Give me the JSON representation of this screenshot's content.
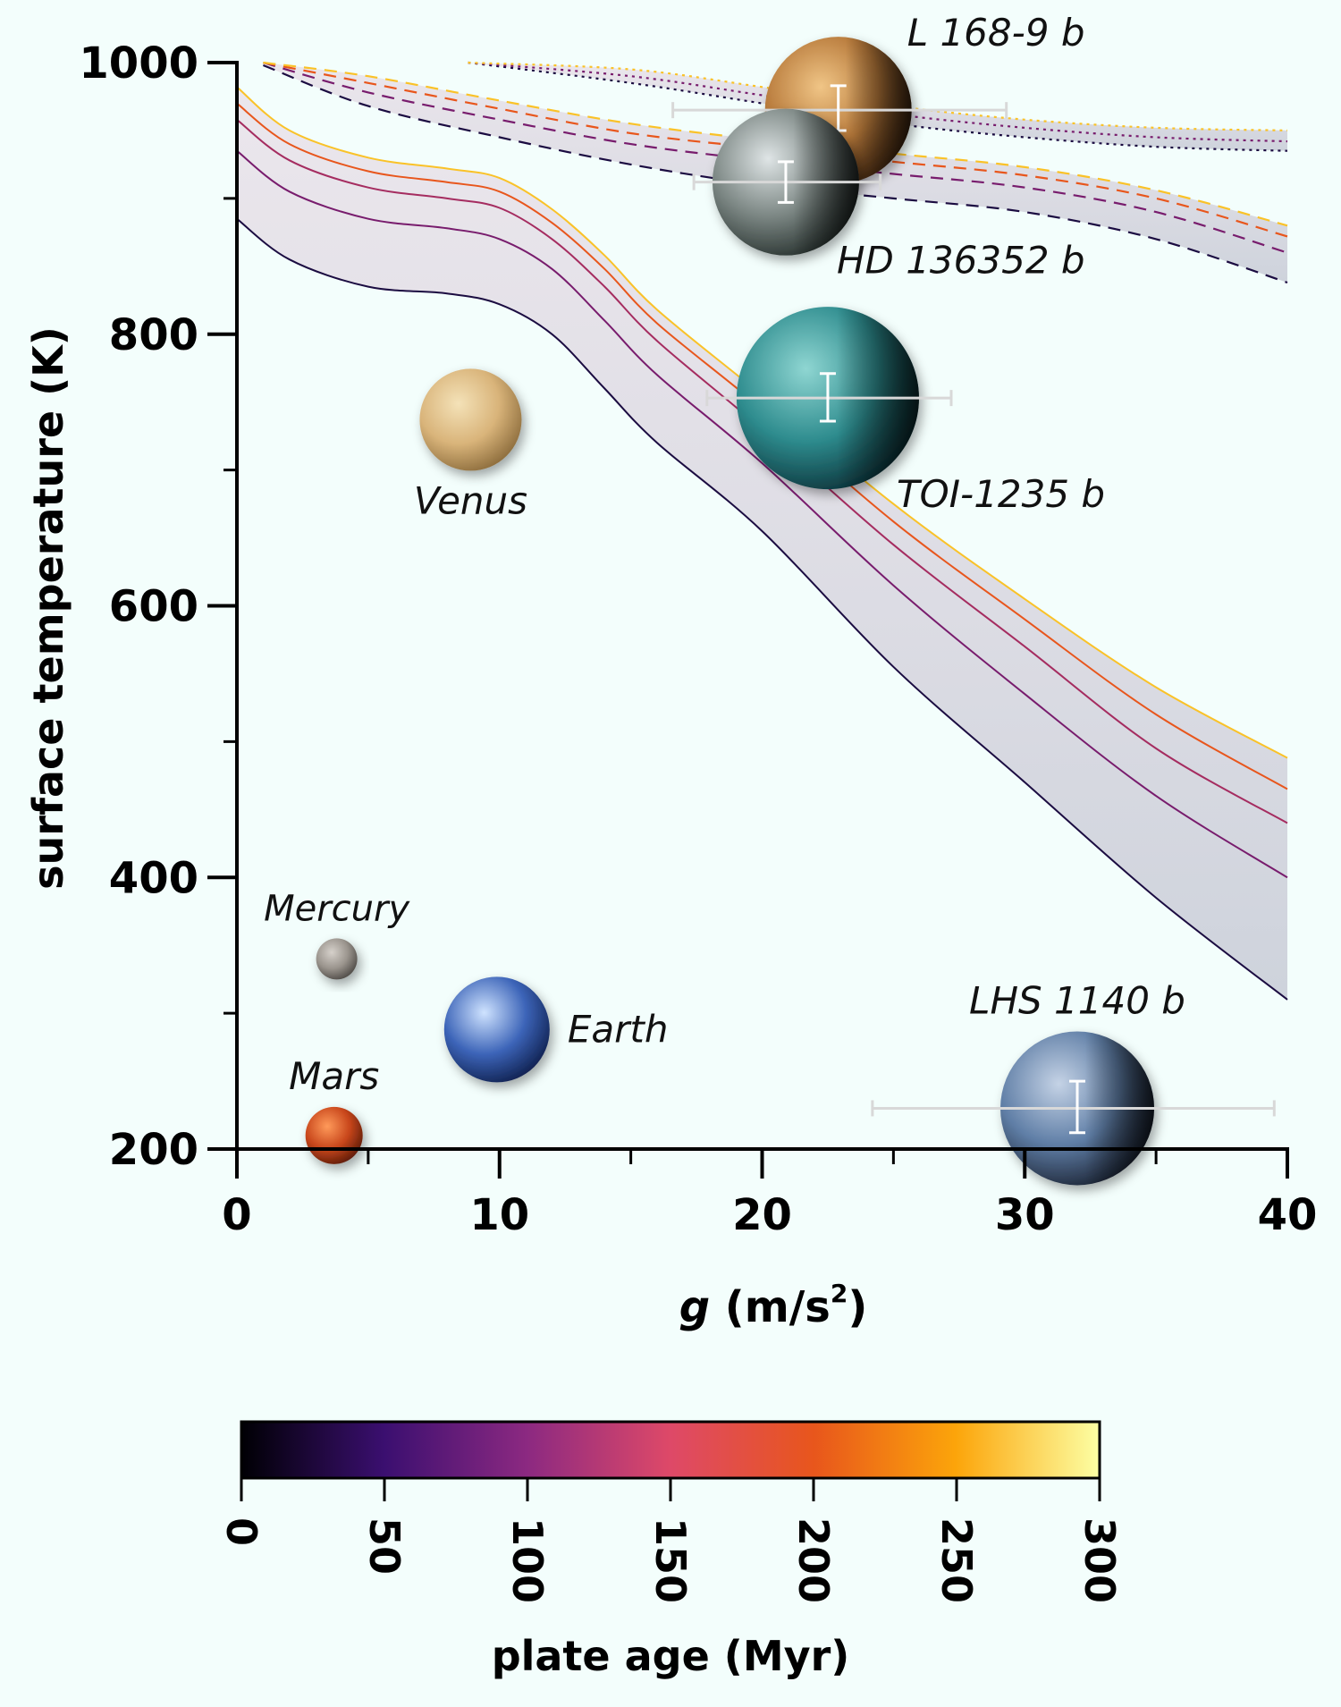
{
  "chart_data": {
    "type": "line",
    "xlabel_italic": "g",
    "xlabel_rest": " (m/s",
    "xlabel_sup": "2",
    "xlabel_end": ")",
    "ylabel": "surface temperature (K)",
    "xlim": [
      0,
      40
    ],
    "ylim": [
      200,
      1000
    ],
    "x_ticks": [
      "0",
      "10",
      "20",
      "30",
      "40"
    ],
    "y_ticks": [
      "200",
      "400",
      "600",
      "800",
      "1000"
    ],
    "colorbar": {
      "label": "plate age (Myr)",
      "range": [
        0,
        300
      ],
      "ticks": [
        "0",
        "50",
        "100",
        "150",
        "200",
        "250",
        "300"
      ],
      "colormap": [
        "#000004",
        "#3b0f70",
        "#8c2981",
        "#de4968",
        "#e8561c",
        "#fca50a",
        "#fcffa4"
      ]
    },
    "bands": [
      {
        "style": "solid",
        "x": [
          0,
          2,
          5,
          8,
          10,
          12,
          14,
          16,
          20,
          25,
          30,
          35,
          40
        ],
        "lines": [
          {
            "age": 0,
            "color": "#1b0c41",
            "y": [
              885,
              855,
              835,
              830,
              822,
              800,
              760,
              720,
              655,
              555,
              470,
              385,
              310
            ]
          },
          {
            "age": 100,
            "color": "#781c6d",
            "y": [
              935,
              905,
              885,
              878,
              870,
              848,
              810,
              770,
              705,
              615,
              535,
              460,
              400
            ]
          },
          {
            "age": 150,
            "color": "#a52c60",
            "y": [
              958,
              928,
              908,
              900,
              893,
              870,
              835,
              795,
              730,
              645,
              570,
              495,
              440
            ]
          },
          {
            "age": 200,
            "color": "#e8561c",
            "y": [
              970,
              940,
              920,
              912,
              905,
              882,
              848,
              808,
              745,
              662,
              590,
              520,
              465
            ]
          },
          {
            "age": 300,
            "color": "#fac228",
            "y": [
              982,
              950,
              930,
              922,
              915,
              892,
              858,
              818,
              755,
              675,
              605,
              540,
              488
            ]
          }
        ]
      },
      {
        "style": "dashed",
        "x": [
          1,
          5,
          10,
          15,
          20,
          25,
          30,
          35,
          40
        ],
        "lines": [
          {
            "age": 0,
            "color": "#1b0c41",
            "y": [
              998,
              968,
              945,
              925,
              910,
              900,
              890,
              870,
              838
            ]
          },
          {
            "age": 100,
            "color": "#781c6d",
            "y": [
              1000,
              978,
              958,
              940,
              928,
              918,
              908,
              890,
              860
            ]
          },
          {
            "age": 200,
            "color": "#e8561c",
            "y": [
              1000,
              985,
              966,
              948,
              937,
              927,
              917,
              900,
              872
            ]
          },
          {
            "age": 300,
            "color": "#fac228",
            "y": [
              1000,
              990,
              972,
              955,
              943,
              933,
              923,
              906,
              880
            ]
          }
        ]
      },
      {
        "style": "dotted",
        "x": [
          8.8,
          15,
          20,
          25,
          30,
          35,
          40
        ],
        "lines": [
          {
            "age": 0,
            "color": "#1b0c41",
            "y": [
              1000,
              985,
              970,
              955,
              945,
              938,
              935
            ]
          },
          {
            "age": 100,
            "color": "#781c6d",
            "y": [
              1000,
              990,
              976,
              962,
              952,
              945,
              942
            ]
          },
          {
            "age": 300,
            "color": "#fac228",
            "y": [
              1000,
              995,
              982,
              968,
              958,
              952,
              950
            ]
          }
        ]
      }
    ],
    "solar_system": [
      {
        "name": "Venus",
        "x": 8.9,
        "y": 737,
        "label_pos": "below",
        "colors": [
          "#f4e2b8",
          "#d9b47a",
          "#8a6a3a"
        ]
      },
      {
        "name": "Mercury",
        "x": 3.8,
        "y": 340,
        "label_pos": "above",
        "colors": [
          "#d6d1cb",
          "#9a948d",
          "#4c4844"
        ]
      },
      {
        "name": "Earth",
        "x": 9.9,
        "y": 288,
        "label_pos": "right",
        "colors": [
          "#cfe3ff",
          "#3c64b8",
          "#0f1f4d"
        ]
      },
      {
        "name": "Mars",
        "x": 3.7,
        "y": 210,
        "label_pos": "above",
        "colors": [
          "#ff9a5a",
          "#c8461b",
          "#5a1a08"
        ]
      }
    ],
    "exoplanets": [
      {
        "name": "L 168-9 b",
        "x": 22.9,
        "x_err": [
          6.3,
          6.4
        ],
        "y": 965,
        "y_err": [
          15,
          18
        ],
        "label_pos": "right-up",
        "colors": [
          "#f0c586",
          "#b7793a",
          "#4a2b12"
        ]
      },
      {
        "name": "HD 136352 b",
        "x": 20.9,
        "x_err": [
          3.5,
          3.6
        ],
        "y": 912,
        "y_err": [
          15,
          15
        ],
        "label_pos": "right-down",
        "colors": [
          "#dfe5e6",
          "#7b8683",
          "#26302d"
        ]
      },
      {
        "name": "TOI-1235 b",
        "x": 22.5,
        "x_err": [
          4.6,
          4.7
        ],
        "y": 753,
        "y_err": [
          17,
          18
        ],
        "label_pos": "right-down",
        "colors": [
          "#8fd6d2",
          "#2e8c8e",
          "#0b3138"
        ]
      },
      {
        "name": "LHS 1140 b",
        "x": 32.0,
        "x_err": [
          7.8,
          7.5
        ],
        "y": 230,
        "y_err": [
          18,
          20
        ],
        "label_pos": "above",
        "colors": [
          "#c5d3e6",
          "#5f7ea6",
          "#1a2232"
        ]
      }
    ]
  }
}
